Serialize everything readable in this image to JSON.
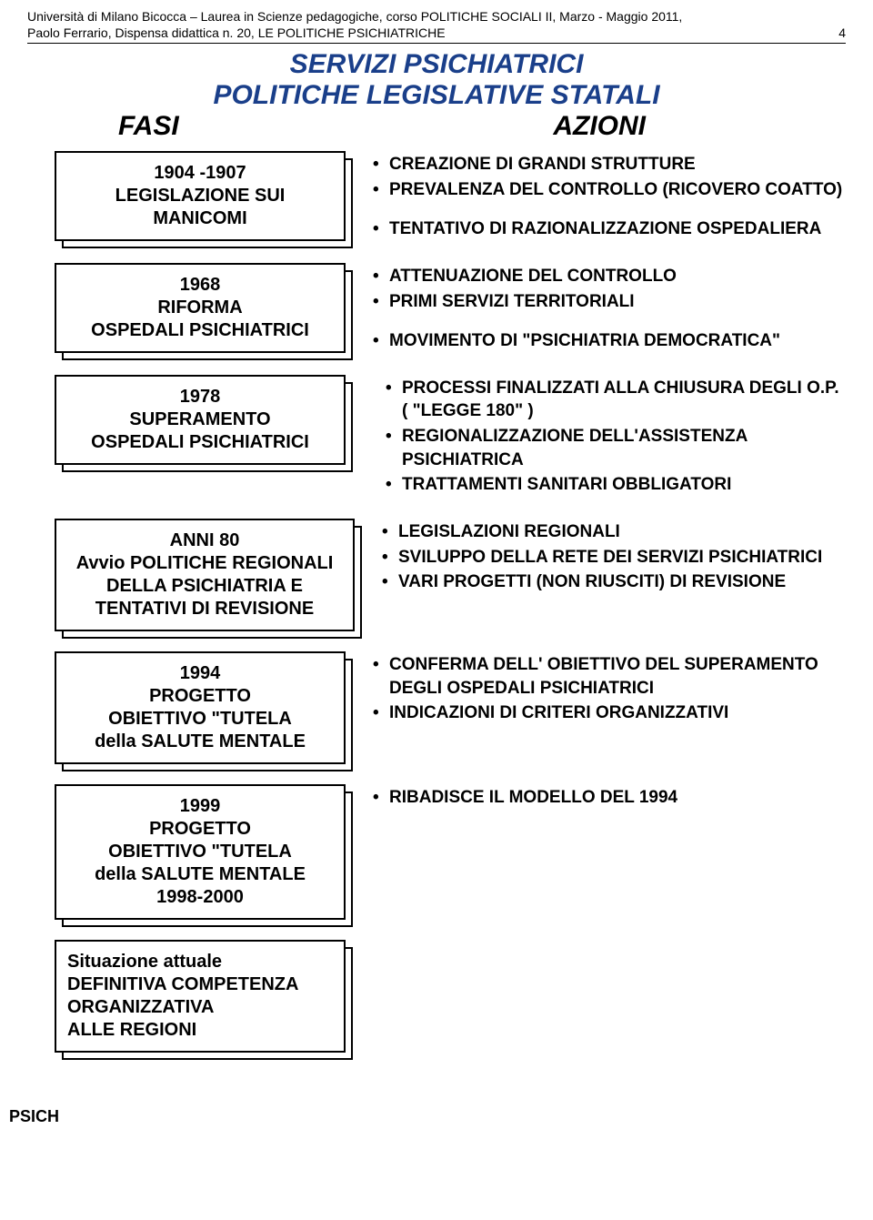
{
  "header": {
    "line1": "Università di Milano Bicocca – Laurea in Scienze pedagogiche, corso POLITICHE SOCIALI II, Marzo - Maggio 2011,",
    "line2": "Paolo Ferrario, Dispensa didattica n. 20, LE POLITICHE PSICHIATRICHE",
    "page_number": "4"
  },
  "title": {
    "line1": "SERVIZI  PSICHIATRICI",
    "line2": "POLITICHE LEGISLATIVE STATALI",
    "col_left": "FASI",
    "col_right": "AZIONI",
    "title_color": "#1a3f8a"
  },
  "rows": [
    {
      "phase": "1904 -1907\nLEGISLAZIONE SUI\nMANICOMI",
      "actions": [
        "CREAZIONE DI GRANDI STRUTTURE",
        "PREVALENZA DEL CONTROLLO (RICOVERO COATTO)"
      ],
      "trailing": [
        "TENTATIVO DI RAZIONALIZZAZIONE OSPEDALIERA"
      ]
    },
    {
      "phase": "1968\nRIFORMA\nOSPEDALI PSICHIATRICI",
      "actions": [
        "ATTENUAZIONE DEL CONTROLLO",
        "PRIMI SERVIZI TERRITORIALI"
      ],
      "trailing": [
        "MOVIMENTO DI \"PSICHIATRIA DEMOCRATICA\""
      ]
    },
    {
      "phase": "1978\nSUPERAMENTO\nOSPEDALI PSICHIATRICI",
      "actions": [
        "PROCESSI FINALIZZATI ALLA CHIUSURA DEGLI O.P. ( \"LEGGE 180\" )",
        "REGIONALIZZAZIONE DELL'ASSISTENZA PSICHIATRICA",
        "TRATTAMENTI SANITARI OBBLIGATORI"
      ],
      "indent": true
    },
    {
      "phase": "ANNI 80\nAvvio POLITICHE REGIONALI\nDELLA PSICHIATRIA E\nTENTATIVI DI REVISIONE",
      "wide": true,
      "actions": [
        "LEGISLAZIONI REGIONALI",
        "SVILUPPO DELLA RETE DEI SERVIZI PSICHIATRICI",
        "VARI PROGETTI (NON RIUSCITI) DI REVISIONE"
      ]
    },
    {
      "phase": "1994\nPROGETTO\nOBIETTIVO \"TUTELA\ndella SALUTE MENTALE",
      "actions": [
        "CONFERMA DELL' OBIETTIVO DEL SUPERAMENTO DEGLI OSPEDALI PSICHIATRICI",
        "INDICAZIONI DI CRITERI ORGANIZZATIVI"
      ]
    },
    {
      "phase": "1999\nPROGETTO\nOBIETTIVO \"TUTELA\ndella SALUTE MENTALE\n1998-2000",
      "actions": [
        "RIBADISCE IL MODELLO DEL 1994"
      ]
    },
    {
      "phase": "Situazione attuale\nDEFINITIVA COMPETENZA\nORGANIZZATIVA\nALLE REGIONI",
      "left_align": true,
      "actions": []
    }
  ],
  "footer": "PSICH"
}
